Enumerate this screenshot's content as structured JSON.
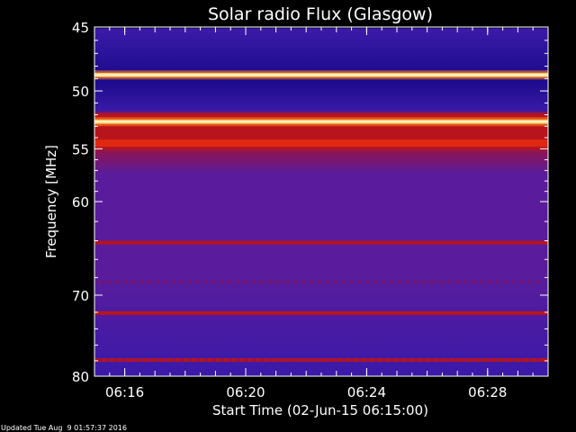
{
  "chart_data": {
    "type": "heatmap",
    "title": "Solar radio Flux (Glasgow)",
    "ylabel": "Frequency [MHz]",
    "xlabel": "Start Time (02-Jun-15 06:15:00)",
    "footer": "Updated Tue Aug  9 01:57:37 2016",
    "y_axis": {
      "scale": "log",
      "range_mhz": [
        45,
        80
      ],
      "tick_labels": [
        45,
        50,
        55,
        60,
        70,
        80
      ],
      "minor_ticks": true
    },
    "x_axis": {
      "range": [
        "06:15:00",
        "06:30:00"
      ],
      "tick_labels": [
        "06:16",
        "06:20",
        "06:24",
        "06:28"
      ]
    },
    "colormap": [
      "#000000",
      "#1a0a8a",
      "#3a1aa8",
      "#5a1c9c",
      "#8a1458",
      "#b8141c",
      "#e02810",
      "#ff7818",
      "#ffc060",
      "#fff8c8"
    ],
    "horizontal_bands": [
      {
        "freq_mhz": 45.2,
        "intensity": "low"
      },
      {
        "freq_mhz": 48.7,
        "intensity": "very high"
      },
      {
        "freq_mhz": 52.6,
        "intensity": "very high"
      },
      {
        "freq_mhz": 54.5,
        "intensity": "high"
      },
      {
        "freq_mhz": 64.2,
        "intensity": "medium"
      },
      {
        "freq_mhz": 72.1,
        "intensity": "medium"
      },
      {
        "freq_mhz": 77.9,
        "intensity": "medium"
      }
    ],
    "background_intensity": {
      "45-52_mhz": "low",
      "52-57_mhz": "high",
      "57-80_mhz": "medium-low"
    }
  }
}
